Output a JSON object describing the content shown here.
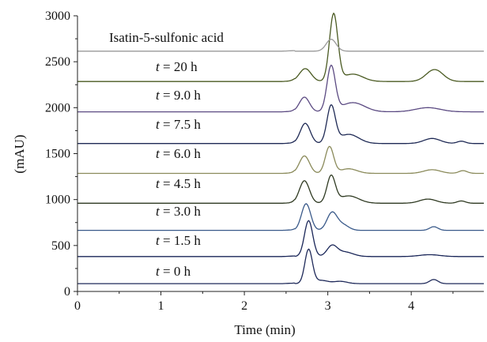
{
  "chart_data": {
    "type": "line",
    "title": "",
    "xlabel": "Time (min)",
    "ylabel": "(mAU)",
    "xlim": [
      0,
      4.87
    ],
    "ylim": [
      0,
      3000
    ],
    "xticks": [
      "0",
      "1",
      "2",
      "3",
      "4"
    ],
    "yticks": [
      "0",
      "500",
      "1000",
      "1500",
      "2000",
      "2500",
      "3000"
    ],
    "grid": false,
    "series": [
      {
        "name": "t = 0 h",
        "label_parts": {
          "var": "t",
          "rest": " = 0 h"
        },
        "color": "#1f2a5a",
        "baseline": 85,
        "peaks": [
          [
            2.77,
            0.045,
            370
          ],
          [
            2.92,
            0.08,
            35
          ],
          [
            3.15,
            0.08,
            25
          ],
          [
            4.27,
            0.05,
            45
          ]
        ]
      },
      {
        "name": "t = 1.5 h",
        "label_parts": {
          "var": "t",
          "rest": " = 1.5 h"
        },
        "color": "#1a2658",
        "baseline": 380,
        "peaks": [
          [
            2.77,
            0.05,
            390
          ],
          [
            3.05,
            0.06,
            110
          ],
          [
            3.2,
            0.1,
            50
          ],
          [
            4.22,
            0.12,
            20
          ]
        ]
      },
      {
        "name": "t = 3.0 h",
        "label_parts": {
          "var": "t",
          "rest": " = 3.0 h"
        },
        "color": "#3a5a8a",
        "baseline": 665,
        "peaks": [
          [
            2.74,
            0.055,
            290
          ],
          [
            3.05,
            0.06,
            190
          ],
          [
            3.18,
            0.07,
            60
          ],
          [
            4.27,
            0.05,
            40
          ]
        ]
      },
      {
        "name": "t = 4.5 h",
        "label_parts": {
          "var": "t",
          "rest": " = 4.5 h"
        },
        "color": "#2f3a22",
        "baseline": 960,
        "peaks": [
          [
            2.72,
            0.06,
            245
          ],
          [
            3.04,
            0.05,
            290
          ],
          [
            3.25,
            0.12,
            80
          ],
          [
            4.2,
            0.1,
            45
          ],
          [
            4.6,
            0.05,
            25
          ]
        ]
      },
      {
        "name": "t = 6.0 h",
        "label_parts": {
          "var": "t",
          "rest": " = 6.0 h"
        },
        "color": "#8a8a5a",
        "baseline": 1285,
        "peaks": [
          [
            2.72,
            0.06,
            190
          ],
          [
            3.02,
            0.05,
            290
          ],
          [
            3.25,
            0.1,
            50
          ],
          [
            4.25,
            0.1,
            40
          ],
          [
            4.62,
            0.05,
            30
          ]
        ]
      },
      {
        "name": "t = 7.5 h",
        "label_parts": {
          "var": "t",
          "rest": " = 7.5 h"
        },
        "color": "#1f2a55",
        "baseline": 1610,
        "peaks": [
          [
            2.73,
            0.06,
            220
          ],
          [
            3.04,
            0.05,
            400
          ],
          [
            3.25,
            0.12,
            100
          ],
          [
            4.25,
            0.1,
            55
          ],
          [
            4.6,
            0.05,
            25
          ]
        ]
      },
      {
        "name": "t = 9.0 h",
        "label_parts": {
          "var": "t",
          "rest": " = 9.0 h"
        },
        "color": "#5b4a82",
        "baseline": 1955,
        "peaks": [
          [
            2.72,
            0.06,
            160
          ],
          [
            3.04,
            0.05,
            490
          ],
          [
            3.3,
            0.14,
            100
          ],
          [
            4.2,
            0.15,
            45
          ]
        ]
      },
      {
        "name": "t = 20 h",
        "label_parts": {
          "var": "t",
          "rest": " = 20 h"
        },
        "color": "#4a5a22",
        "baseline": 2285,
        "peaks": [
          [
            2.73,
            0.07,
            140
          ],
          [
            3.07,
            0.05,
            730
          ],
          [
            3.3,
            0.12,
            80
          ],
          [
            4.28,
            0.1,
            130
          ]
        ]
      },
      {
        "name": "Isatin-5-sulfonic acid",
        "label_parts": {
          "var": "",
          "rest": "Isatin-5-sulfonic acid"
        },
        "color": "#9a9a9a",
        "baseline": 2615,
        "peaks": [
          [
            3.04,
            0.06,
            130
          ]
        ]
      }
    ]
  }
}
